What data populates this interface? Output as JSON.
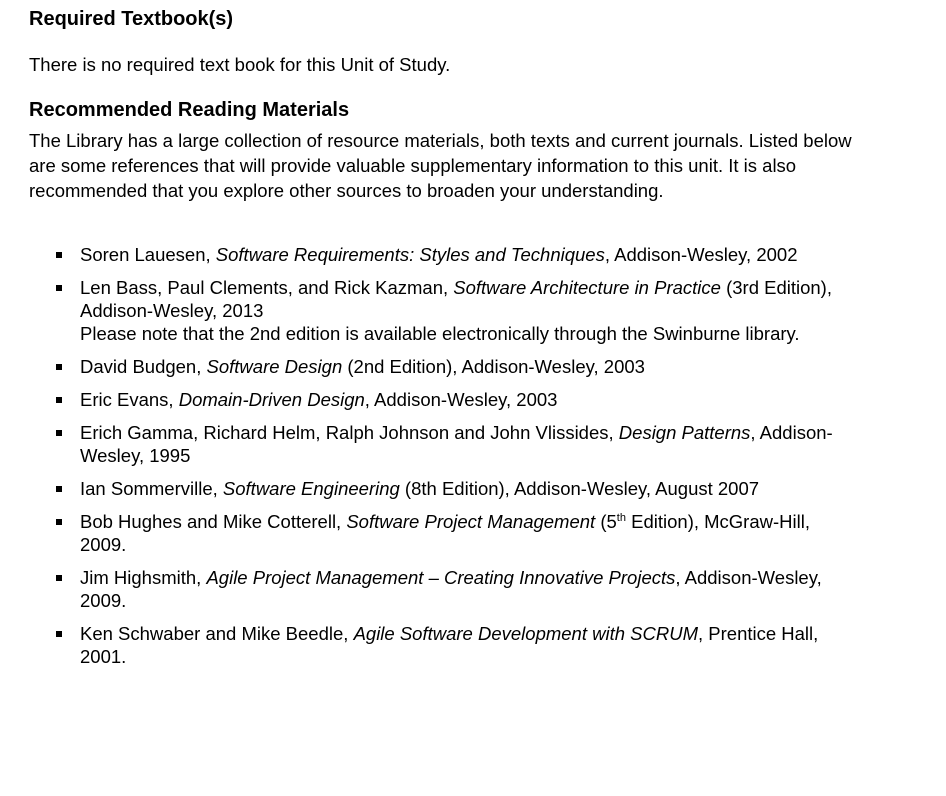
{
  "required": {
    "heading": "Required Textbook(s)",
    "text": "There is no required text book for this Unit of Study."
  },
  "recommended": {
    "heading": "Recommended Reading Materials",
    "intro": "The Library has a large collection of resource materials, both texts and current journals. Listed below are some references that will provide valuable supplementary information to this unit. It is also recommended that you explore other sources to broaden your understanding."
  },
  "references": [
    {
      "pre": "Soren Lauesen, ",
      "title": "Software Requirements: Styles and Techniques",
      "post": ", Addison-Wesley, 2002"
    },
    {
      "pre": "Len Bass, Paul Clements, and Rick Kazman, ",
      "title": "Software Architecture in Practice",
      "post": " (3rd Edition), Addison-Wesley, 2013",
      "note": "Please note that the 2nd edition is available electronically through the Swinburne library."
    },
    {
      "pre": "David Budgen, ",
      "title": "Software Design",
      "post": " (2nd Edition), Addison-Wesley, 2003"
    },
    {
      "pre": "Eric Evans, ",
      "title": "Domain-Driven Design",
      "post": ", Addison-Wesley, 2003"
    },
    {
      "pre": "Erich Gamma, Richard Helm, Ralph Johnson and John Vlissides, ",
      "title": "Design Patterns",
      "post": ", Addison-Wesley, 1995"
    },
    {
      "pre": "Ian Sommerville, ",
      "title": "Software Engineering",
      "post": " (8th Edition), Addison-Wesley, August 2007"
    },
    {
      "pre": "Bob Hughes and Mike Cotterell, ",
      "title": "Software Project Management",
      "post": " (5",
      "sup": "th",
      "post2": " Edition), McGraw-Hill, 2009."
    },
    {
      "pre": "Jim Highsmith, ",
      "title": "Agile Project Management – Creating Innovative Projects",
      "post": ", Addison-Wesley, 2009."
    },
    {
      "pre": "Ken Schwaber and Mike Beedle, ",
      "title": "Agile Software Development with SCRUM",
      "post": ", Prentice Hall, 2001."
    }
  ]
}
